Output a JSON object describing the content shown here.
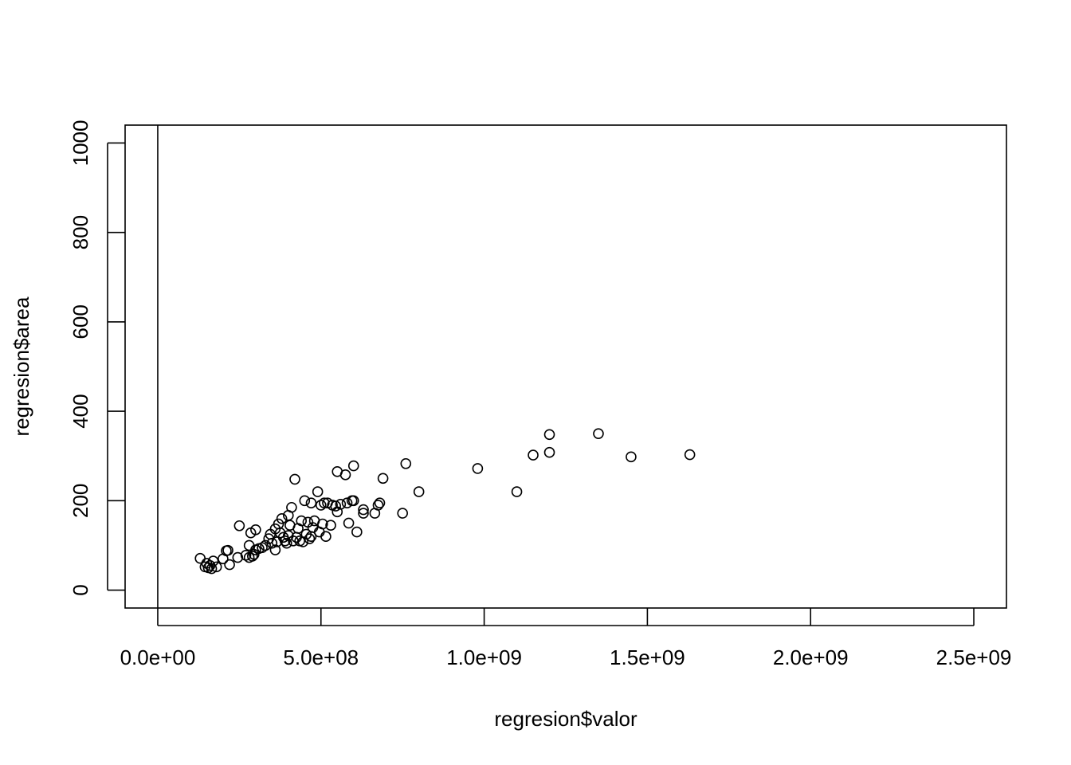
{
  "chart_data": {
    "type": "scatter",
    "title": "",
    "xlabel": "regresion$valor",
    "ylabel": "regresion$area",
    "xlim": [
      -100000000,
      2600000000
    ],
    "ylim": [
      -40,
      1040
    ],
    "x_ticks": [
      0,
      500000000,
      1000000000,
      1500000000,
      2000000000,
      2500000000
    ],
    "x_tick_labels": [
      "0.0e+00",
      "5.0e+08",
      "1.0e+09",
      "1.5e+09",
      "2.0e+09",
      "2.5e+09"
    ],
    "y_ticks": [
      0,
      200,
      400,
      600,
      800,
      1000
    ],
    "y_tick_labels": [
      "0",
      "200",
      "400",
      "600",
      "800",
      "1000"
    ],
    "vertical_line_at_x": 0,
    "grid": false,
    "legend": "none",
    "point_style": "open-circle",
    "colors": {
      "points": "#000000",
      "frame": "#000000",
      "background": "#ffffff"
    },
    "points": [
      [
        130000000,
        71
      ],
      [
        145000000,
        52
      ],
      [
        150000000,
        60
      ],
      [
        155000000,
        50
      ],
      [
        160000000,
        55
      ],
      [
        165000000,
        48
      ],
      [
        170000000,
        65
      ],
      [
        180000000,
        52
      ],
      [
        200000000,
        70
      ],
      [
        210000000,
        88
      ],
      [
        215000000,
        89
      ],
      [
        220000000,
        57
      ],
      [
        245000000,
        73
      ],
      [
        250000000,
        144
      ],
      [
        270000000,
        78
      ],
      [
        280000000,
        73
      ],
      [
        280000000,
        100
      ],
      [
        285000000,
        128
      ],
      [
        290000000,
        76
      ],
      [
        295000000,
        80
      ],
      [
        300000000,
        135
      ],
      [
        300000000,
        90
      ],
      [
        310000000,
        93
      ],
      [
        320000000,
        95
      ],
      [
        330000000,
        100
      ],
      [
        340000000,
        115
      ],
      [
        345000000,
        125
      ],
      [
        350000000,
        105
      ],
      [
        360000000,
        137
      ],
      [
        360000000,
        90
      ],
      [
        365000000,
        108
      ],
      [
        370000000,
        148
      ],
      [
        375000000,
        128
      ],
      [
        380000000,
        160
      ],
      [
        385000000,
        118
      ],
      [
        390000000,
        110
      ],
      [
        395000000,
        105
      ],
      [
        400000000,
        167
      ],
      [
        400000000,
        122
      ],
      [
        405000000,
        145
      ],
      [
        410000000,
        185
      ],
      [
        415000000,
        110
      ],
      [
        420000000,
        248
      ],
      [
        425000000,
        118
      ],
      [
        430000000,
        138
      ],
      [
        435000000,
        110
      ],
      [
        440000000,
        155
      ],
      [
        445000000,
        108
      ],
      [
        450000000,
        200
      ],
      [
        455000000,
        125
      ],
      [
        460000000,
        152
      ],
      [
        465000000,
        115
      ],
      [
        470000000,
        195
      ],
      [
        470000000,
        120
      ],
      [
        475000000,
        140
      ],
      [
        480000000,
        155
      ],
      [
        490000000,
        220
      ],
      [
        495000000,
        130
      ],
      [
        500000000,
        190
      ],
      [
        505000000,
        148
      ],
      [
        510000000,
        195
      ],
      [
        515000000,
        120
      ],
      [
        520000000,
        195
      ],
      [
        530000000,
        145
      ],
      [
        535000000,
        190
      ],
      [
        545000000,
        188
      ],
      [
        550000000,
        265
      ],
      [
        550000000,
        175
      ],
      [
        560000000,
        192
      ],
      [
        575000000,
        258
      ],
      [
        580000000,
        195
      ],
      [
        585000000,
        150
      ],
      [
        595000000,
        200
      ],
      [
        600000000,
        278
      ],
      [
        600000000,
        200
      ],
      [
        610000000,
        130
      ],
      [
        630000000,
        180
      ],
      [
        630000000,
        172
      ],
      [
        665000000,
        172
      ],
      [
        675000000,
        190
      ],
      [
        680000000,
        195
      ],
      [
        690000000,
        250
      ],
      [
        750000000,
        172
      ],
      [
        760000000,
        283
      ],
      [
        800000000,
        220
      ],
      [
        980000000,
        272
      ],
      [
        1100000000,
        220
      ],
      [
        1150000000,
        302
      ],
      [
        1200000000,
        348
      ],
      [
        1200000000,
        308
      ],
      [
        1350000000,
        350
      ],
      [
        1450000000,
        298
      ],
      [
        1630000000,
        303
      ]
    ]
  }
}
